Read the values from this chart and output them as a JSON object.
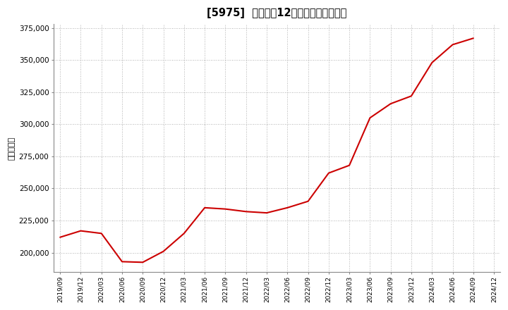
{
  "title": "[5975]  売上高の12か月移動合計の推移",
  "ylabel": "（百万円）",
  "line_color": "#cc0000",
  "background_color": "#ffffff",
  "plot_bg_color": "#ffffff",
  "grid_color": "#999999",
  "dates": [
    "2019/09",
    "2019/12",
    "2020/03",
    "2020/06",
    "2020/09",
    "2020/12",
    "2021/03",
    "2021/06",
    "2021/09",
    "2021/12",
    "2022/03",
    "2022/06",
    "2022/09",
    "2022/12",
    "2023/03",
    "2023/06",
    "2023/09",
    "2023/12",
    "2024/03",
    "2024/06",
    "2024/09",
    "2024/12"
  ],
  "values": [
    212000,
    217000,
    215000,
    193000,
    192500,
    201000,
    215000,
    235000,
    234000,
    232000,
    231000,
    235000,
    240000,
    262000,
    268000,
    305000,
    316000,
    322000,
    348000,
    362000,
    367000,
    null
  ],
  "ylim": [
    185000,
    378000
  ],
  "yticks": [
    200000,
    225000,
    250000,
    275000,
    300000,
    325000,
    350000,
    375000
  ],
  "xtick_labels": [
    "2019/09",
    "2019/12",
    "2020/03",
    "2020/06",
    "2020/09",
    "2020/12",
    "2021/03",
    "2021/06",
    "2021/09",
    "2021/12",
    "2022/03",
    "2022/06",
    "2022/09",
    "2022/12",
    "2023/03",
    "2023/06",
    "2023/09",
    "2023/12",
    "2024/03",
    "2024/06",
    "2024/09",
    "2024/12"
  ]
}
